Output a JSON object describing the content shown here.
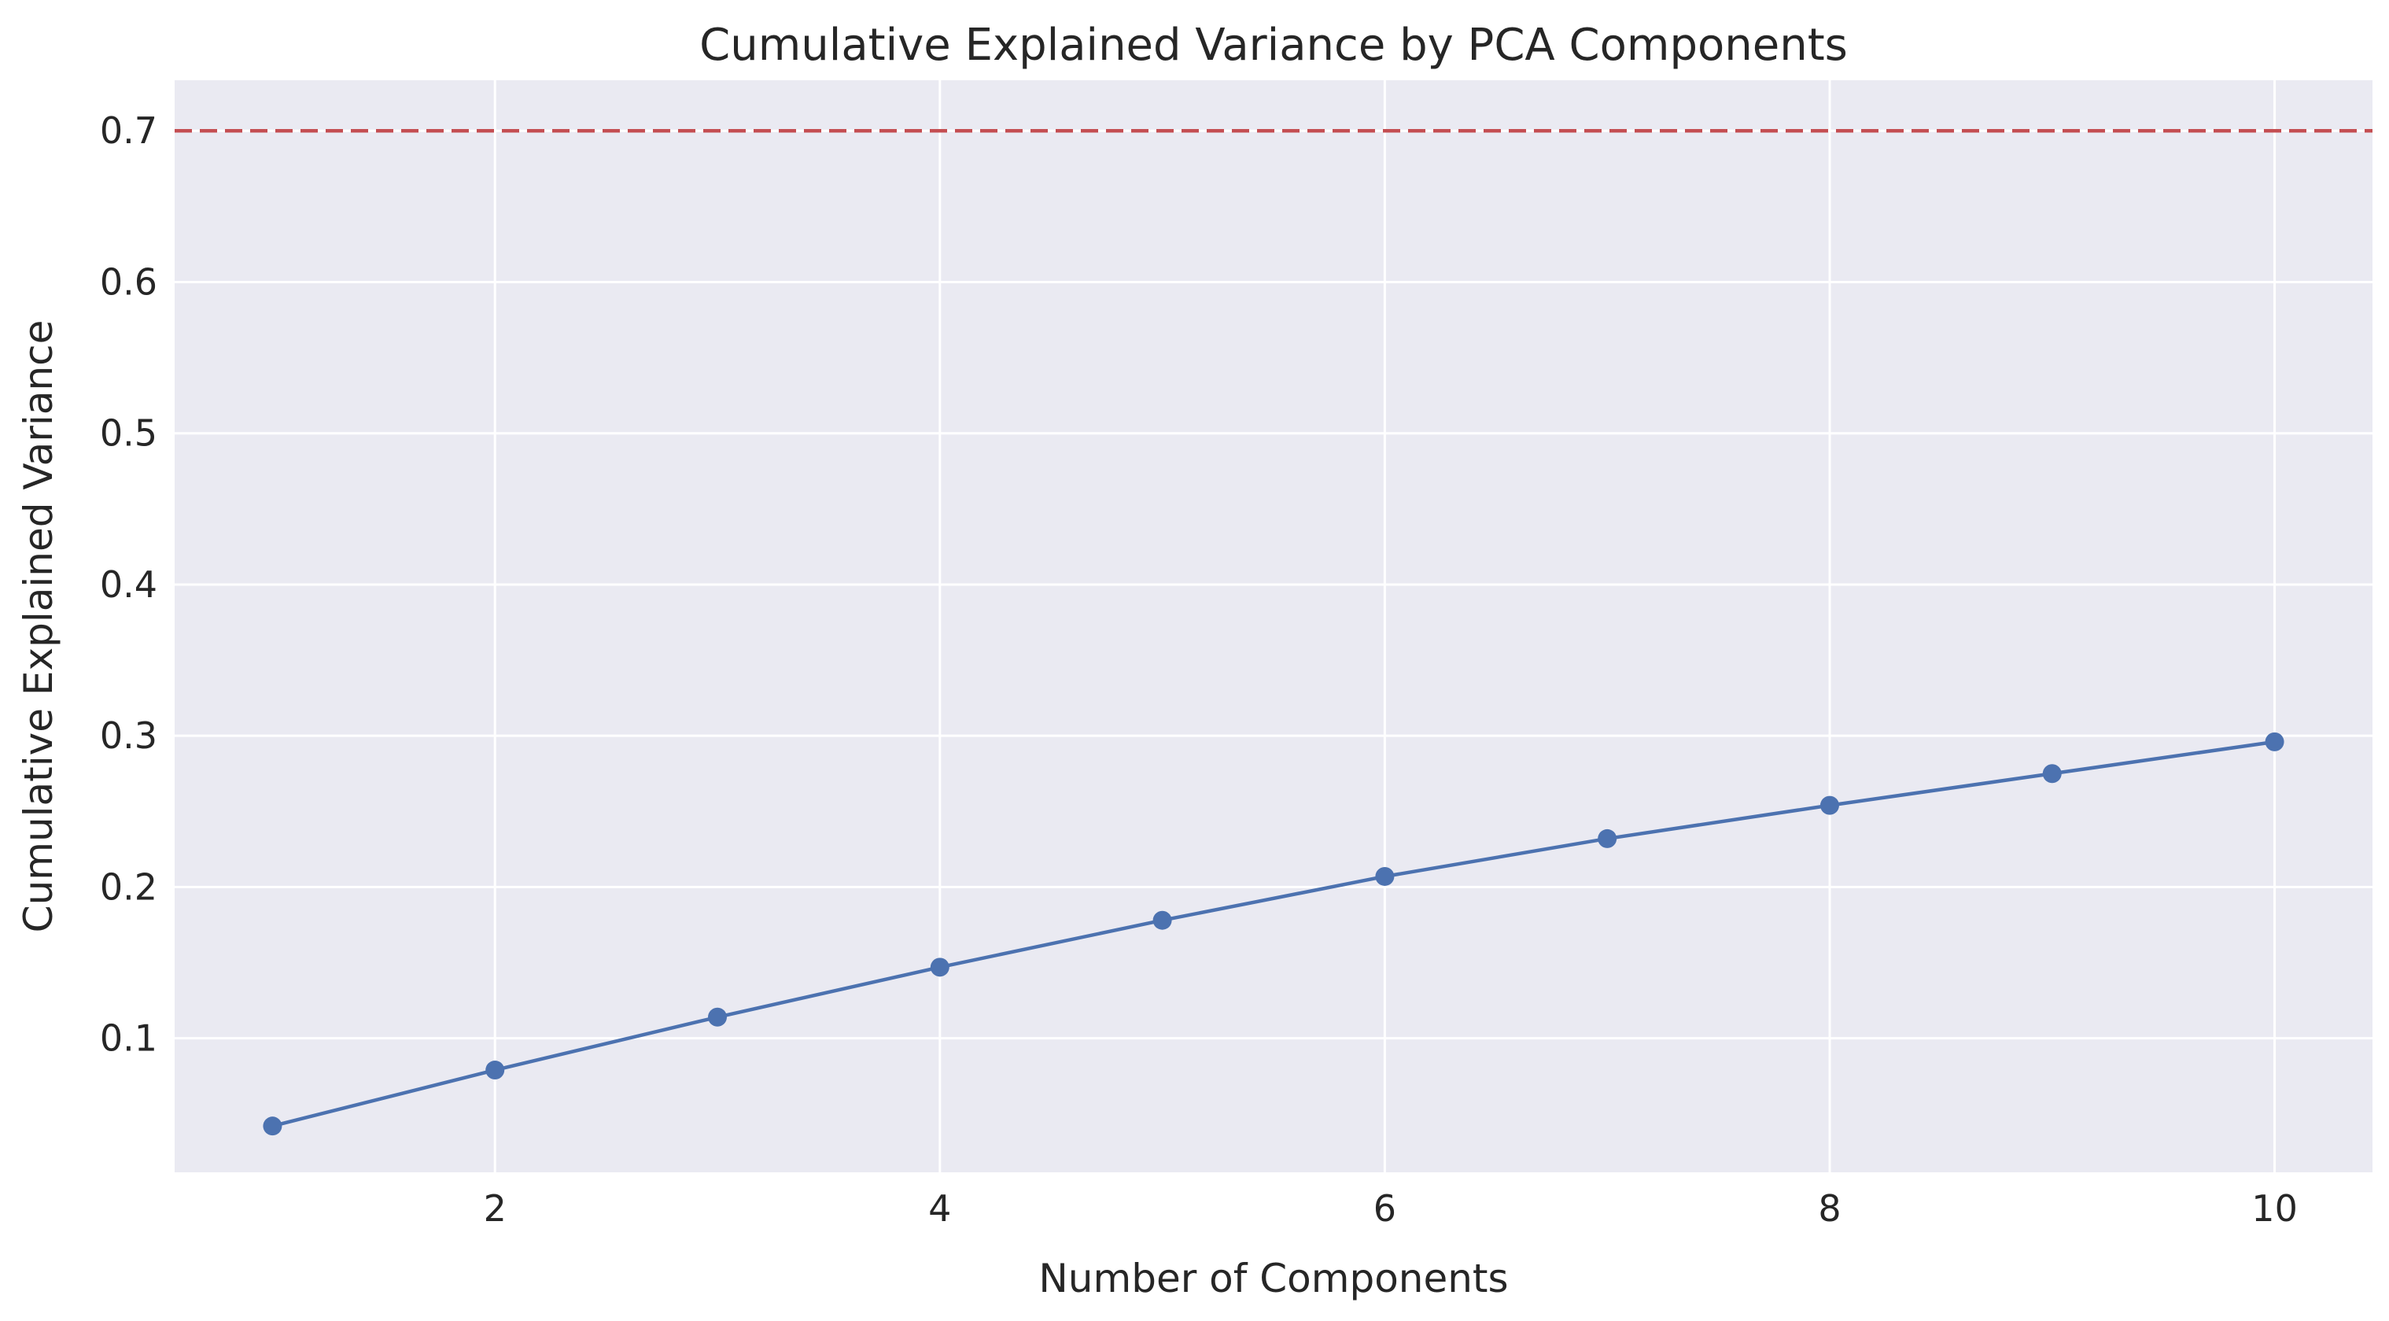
{
  "chart_data": {
    "type": "line",
    "title": "Cumulative Explained Variance by PCA Components",
    "xlabel": "Number of Components",
    "ylabel": "Cumulative Explained Variance",
    "x": [
      1,
      2,
      3,
      4,
      5,
      6,
      7,
      8,
      9,
      10
    ],
    "series": [
      {
        "values": [
          0.042,
          0.079,
          0.114,
          0.147,
          0.178,
          0.207,
          0.232,
          0.254,
          0.275,
          0.296
        ],
        "color": "#4c72b0",
        "marker": "circle"
      }
    ],
    "reference_line": {
      "orientation": "horizontal",
      "y": 0.7,
      "color": "#c44e52",
      "style": "dashed"
    },
    "xlim": [
      0.56,
      10.44
    ],
    "ylim": [
      0.0114,
      0.7334
    ],
    "xticks": [
      2,
      4,
      6,
      8,
      10
    ],
    "yticks": [
      0.1,
      0.2,
      0.3,
      0.4,
      0.5,
      0.6,
      0.7
    ],
    "grid": true,
    "background_color": "#eaeaf2",
    "grid_color": "#ffffff"
  }
}
